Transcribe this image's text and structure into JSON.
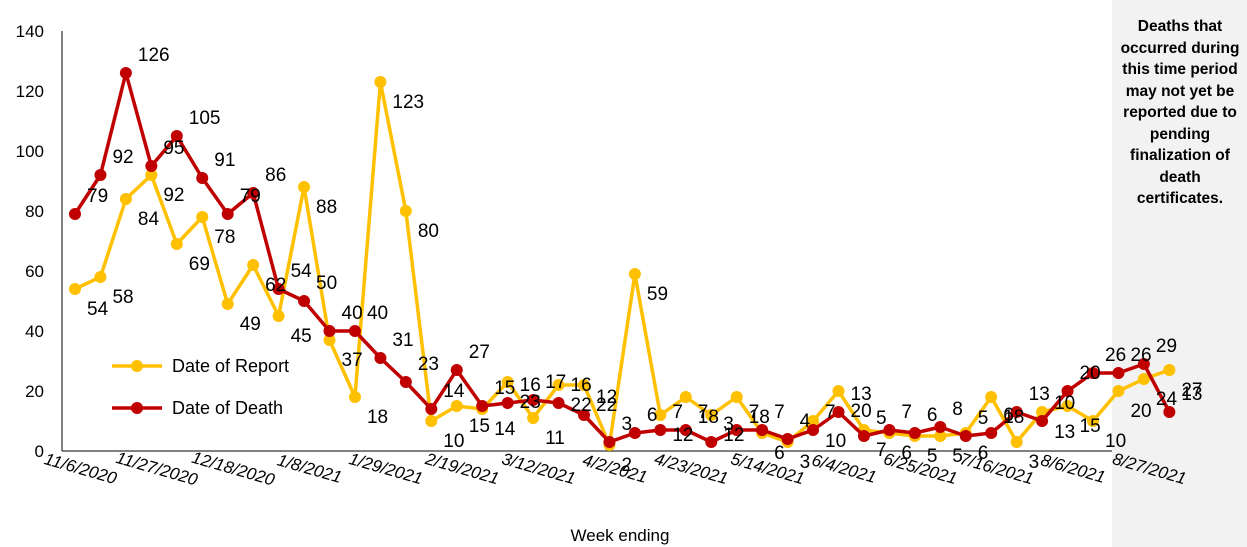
{
  "chart_data": {
    "type": "line",
    "xlabel": "Week ending",
    "ylabel": "",
    "ylim": [
      0,
      140
    ],
    "yticks": [
      0,
      20,
      40,
      60,
      80,
      100,
      120,
      140
    ],
    "grid": false,
    "legend_position": "lower-left",
    "x_tick_labels": [
      "11/6/2020",
      "11/27/2020",
      "12/18/2020",
      "1/8/2021",
      "1/29/2021",
      "2/19/2021",
      "3/12/2021",
      "4/2/2021",
      "4/23/2021",
      "5/14/2021",
      "6/4/2021",
      "6/25/2021",
      "7/16/2021",
      "8/6/2021",
      "8/27/2021"
    ],
    "series": [
      {
        "name": "Date of Report",
        "color": "#FFC000",
        "values": [
          54,
          58,
          84,
          92,
          69,
          78,
          49,
          62,
          45,
          88,
          37,
          18,
          123,
          80,
          10,
          15,
          14,
          23,
          11,
          22,
          22,
          2,
          59,
          12,
          18,
          12,
          18,
          6,
          3,
          10,
          20,
          7,
          6,
          5,
          5,
          6,
          18,
          3,
          13,
          15,
          10,
          20,
          24,
          27
        ]
      },
      {
        "name": "Date of Death",
        "color": "#C00000",
        "values": [
          79,
          92,
          126,
          95,
          105,
          91,
          79,
          86,
          54,
          50,
          40,
          40,
          31,
          23,
          14,
          27,
          15,
          16,
          17,
          16,
          12,
          3,
          6,
          7,
          7,
          3,
          7,
          7,
          4,
          7,
          13,
          5,
          7,
          6,
          8,
          5,
          6,
          13,
          10,
          20,
          26,
          26,
          29,
          13
        ]
      }
    ],
    "annotation": "Deaths that occurred during this time period may not yet be reported due to pending finalization of death certificates."
  }
}
